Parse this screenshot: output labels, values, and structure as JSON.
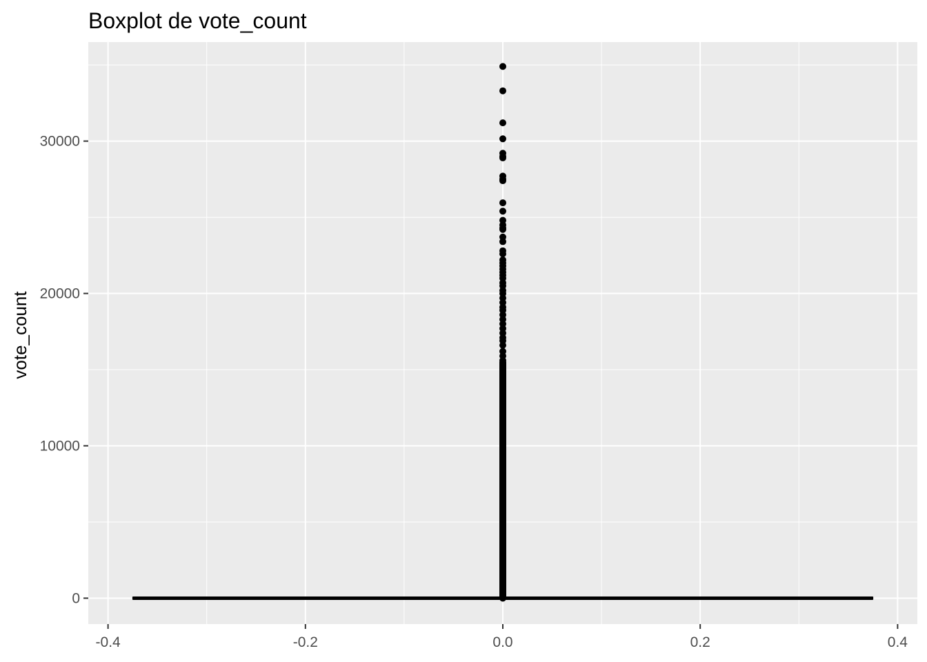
{
  "chart_data": {
    "type": "boxplot",
    "title": "Boxplot de vote_count",
    "xlabel": "",
    "ylabel": "vote_count",
    "xlim": [
      -0.42,
      0.42
    ],
    "ylim": [
      -1700,
      36500
    ],
    "x_ticks": [
      -0.4,
      -0.2,
      0.0,
      0.2,
      0.4
    ],
    "x_tick_labels": [
      "-0.4",
      "-0.2",
      "0.0",
      "0.2",
      "0.4"
    ],
    "y_ticks": [
      0,
      10000,
      20000,
      30000
    ],
    "y_tick_labels": [
      "0",
      "10000",
      "20000",
      "30000"
    ],
    "grid": true,
    "legend": "none",
    "colors": {
      "panel": "#ebebeb",
      "grid": "#ffffff",
      "box": "#000000",
      "outlier": "#000000"
    },
    "box": {
      "x_center": 0.0,
      "x_left": -0.375,
      "x_right": 0.375,
      "q1": 0,
      "median": 0,
      "q3": 0,
      "whisker_low": 0,
      "whisker_high": 0
    },
    "outliers": [
      34900,
      33300,
      31200,
      30150,
      29200,
      29000,
      28900,
      27700,
      27500,
      27400,
      25950,
      25400,
      24800,
      24500,
      24300,
      24200,
      23700,
      23400,
      22800,
      22600,
      22200,
      22000,
      21800,
      21600,
      21400,
      21200,
      21000,
      20700,
      20500,
      20200,
      20000,
      19700,
      19400,
      19100,
      18900,
      18600,
      18300,
      18000,
      17700,
      17400,
      17100,
      16900,
      16600,
      16200,
      15900,
      15600
    ],
    "outlier_continuous_range": [
      0,
      15500
    ]
  }
}
